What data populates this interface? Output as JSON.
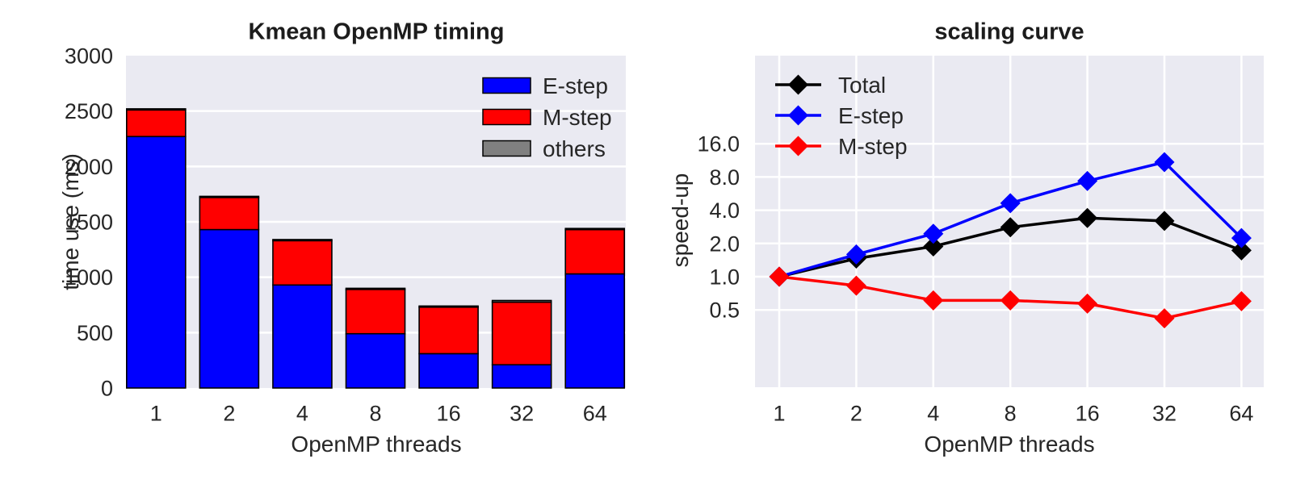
{
  "figure": {
    "background": "#ffffff",
    "plot_background": "#eaeaf2",
    "grid_color": "#ffffff",
    "text_color": "#262626",
    "bar_edge_color": "#000000"
  },
  "chart_data": [
    {
      "type": "bar",
      "stacked": true,
      "title": "Kmean OpenMP timing",
      "xlabel": "OpenMP threads",
      "ylabel": "time use (ms)",
      "categories": [
        "1",
        "2",
        "4",
        "8",
        "16",
        "32",
        "64"
      ],
      "series": [
        {
          "name": "E-step",
          "color": "#0000ff",
          "values": [
            2270,
            1430,
            930,
            490,
            310,
            210,
            1030
          ]
        },
        {
          "name": "M-step",
          "color": "#ff0000",
          "values": [
            240,
            290,
            400,
            400,
            420,
            565,
            400
          ]
        },
        {
          "name": "others",
          "color": "#808080",
          "values": [
            10,
            10,
            10,
            10,
            10,
            15,
            10
          ]
        }
      ],
      "ylim": [
        0,
        3000
      ],
      "yticks": [
        0,
        500,
        1000,
        1500,
        2000,
        2500,
        3000
      ],
      "ytick_labels": [
        "0",
        "500",
        "1000",
        "1500",
        "2000",
        "2500",
        "3000"
      ],
      "grid": "horizontal",
      "legend_position": "upper-right"
    },
    {
      "type": "line",
      "x_scale": "log2",
      "y_scale": "log2",
      "title": "scaling curve",
      "xlabel": "OpenMP threads",
      "ylabel": "speed-up",
      "x": [
        1,
        2,
        4,
        8,
        16,
        32,
        64
      ],
      "xtick_labels": [
        "1",
        "2",
        "4",
        "8",
        "16",
        "32",
        "64"
      ],
      "series": [
        {
          "name": "Total",
          "color": "#000000",
          "values": [
            1.0,
            1.46,
            1.88,
            2.8,
            3.4,
            3.2,
            1.73
          ]
        },
        {
          "name": "E-step",
          "color": "#0000ff",
          "values": [
            1.0,
            1.59,
            2.45,
            4.63,
            7.35,
            10.9,
            2.24
          ]
        },
        {
          "name": "M-step",
          "color": "#ff0000",
          "values": [
            1.0,
            0.83,
            0.61,
            0.61,
            0.57,
            0.42,
            0.6
          ]
        }
      ],
      "ylim": [
        0.1,
        100
      ],
      "yticks": [
        0.5,
        1,
        2,
        4,
        8,
        16
      ],
      "ytick_labels": [
        "0.5",
        "1.0",
        "2.0",
        "4.0",
        "8.0",
        "16.0"
      ],
      "marker": "diamond",
      "grid": "both",
      "legend_position": "upper-left"
    }
  ]
}
